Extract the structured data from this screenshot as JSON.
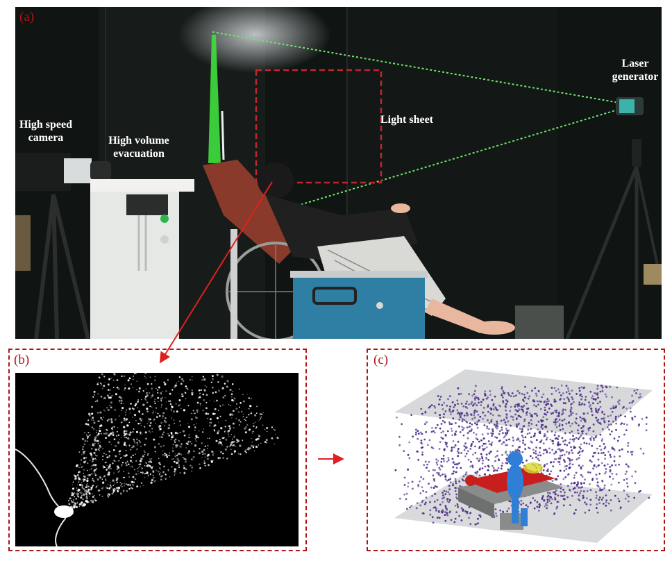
{
  "panel_a": {
    "label": "(a)",
    "labels": {
      "camera": "High speed camera",
      "evacuation": "High volume evacuation",
      "light_sheet": "Light sheet",
      "laser": "Laser generator"
    },
    "colors": {
      "laser": "#3ee03e",
      "box": "#c0272d"
    }
  },
  "panel_b": {
    "label": "(b)"
  },
  "panel_c": {
    "label": "(c)",
    "colors": {
      "particles": "#4b2a86",
      "patient": "#c81e1e",
      "doctor": "#2f7fd6"
    }
  },
  "colors": {
    "accent": "#b01515",
    "arrow": "#e02020"
  }
}
